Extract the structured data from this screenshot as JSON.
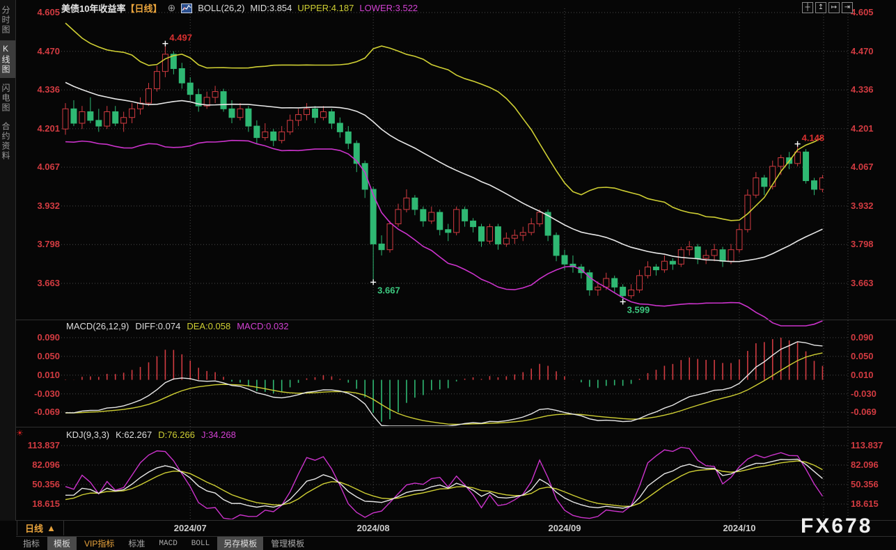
{
  "header": {
    "title": "美债10年收益率",
    "period_tag": "【日线】",
    "add_icon": "⊕",
    "indicator": "BOLL(26,2)",
    "mid_label": "MID:3.854",
    "upper_label": "UPPER:4.187",
    "lower_label": "LOWER:3.522"
  },
  "window_controls": [
    {
      "name": "crosshair-icon",
      "glyph": "┼"
    },
    {
      "name": "y-axis-zoom-icon",
      "glyph": "↥"
    },
    {
      "name": "x-axis-zoom-icon",
      "glyph": "↦"
    },
    {
      "name": "pan-right-icon",
      "glyph": "⇥"
    }
  ],
  "sidebar": {
    "items": [
      {
        "label": "分时图",
        "active": false
      },
      {
        "label": "K线图",
        "active": true
      },
      {
        "label": "闪电图",
        "active": false
      },
      {
        "label": "合约资料",
        "active": false
      }
    ]
  },
  "main_panel": {
    "yticks": [
      "4.605",
      "4.470",
      "4.336",
      "4.201",
      "4.067",
      "3.932",
      "3.798",
      "3.663"
    ]
  },
  "macd_panel": {
    "title": "MACD(26,12,9)",
    "diff_label": "DIFF:0.074",
    "dea_label": "DEA:0.058",
    "macd_label": "MACD:0.032",
    "yticks": [
      "0.090",
      "0.050",
      "0.010",
      "-0.030",
      "-0.069"
    ],
    "settings_icon": "☀"
  },
  "kdj_panel": {
    "title": "KDJ(9,3,3)",
    "k_label": "K:62.267",
    "d_label": "D:76.266",
    "j_label": "J:34.268",
    "yticks": [
      "113.837",
      "82.096",
      "50.356",
      "18.615"
    ]
  },
  "xaxis": {
    "period_label": "日线",
    "period_arrow": "▲",
    "ticks": [
      {
        "label": "2024/07",
        "index": 15
      },
      {
        "label": "2024/08",
        "index": 37
      },
      {
        "label": "2024/09",
        "index": 60
      },
      {
        "label": "2024/10",
        "index": 81
      }
    ]
  },
  "watermark": "FX678",
  "toolbar": {
    "tabs": [
      {
        "label": "指标",
        "style": "plain"
      },
      {
        "label": "模板",
        "style": "active"
      },
      {
        "label": "VIP指标",
        "style": "vip"
      },
      {
        "label": "标准",
        "style": "plain"
      },
      {
        "label": "MACD",
        "style": "mono"
      },
      {
        "label": "BOLL",
        "style": "mono"
      },
      {
        "label": "另存模板",
        "style": "active"
      },
      {
        "label": "管理模板",
        "style": "plain"
      }
    ]
  },
  "colors": {
    "up": "#d23b41",
    "down": "#2fb873",
    "axis_label": "#d23b41",
    "yellow_line": "#cfcf33",
    "magenta_line": "#cc33cc",
    "white_line": "#e8e8e8",
    "grid": "#4a4a4a",
    "accent_orange": "#e8a33c",
    "annotation_high": "#d83030",
    "annotation_low": "#3cc87f",
    "watermark": "#efefef"
  },
  "chart_data": {
    "type": "candlestick",
    "symbol": "美债10年收益率",
    "period": "日线",
    "overlays": [
      "BOLL(26,2)"
    ],
    "sub_charts": [
      "MACD(26,12,9)",
      "KDJ(9,3,3)"
    ],
    "y_range": [
      3.547,
      4.62
    ],
    "x_tick_labels": [
      "2024/07",
      "2024/08",
      "2024/09",
      "2024/10"
    ],
    "displayed_values": {
      "boll": {
        "mid": 3.854,
        "upper": 4.187,
        "lower": 3.522
      },
      "macd": {
        "diff": 0.074,
        "dea": 0.058,
        "macd": 0.032
      },
      "kdj": {
        "k": 62.267,
        "d": 76.266,
        "j": 34.268
      }
    },
    "annotations": [
      {
        "text": "4.497",
        "value": 4.497,
        "candle_index": 12,
        "placement": "above",
        "color": "#d83030"
      },
      {
        "text": "3.667",
        "value": 3.667,
        "candle_index": 37,
        "placement": "below",
        "color": "#3cc87f"
      },
      {
        "text": "3.599",
        "value": 3.599,
        "candle_index": 67,
        "placement": "below",
        "color": "#3cc87f"
      },
      {
        "text": "4.148",
        "value": 4.148,
        "candle_index": 88,
        "placement": "above",
        "color": "#d83030"
      }
    ],
    "candles_ohlc": [
      [
        4.2,
        4.29,
        4.18,
        4.27
      ],
      [
        4.27,
        4.3,
        4.21,
        4.22
      ],
      [
        4.22,
        4.28,
        4.2,
        4.26
      ],
      [
        4.26,
        4.31,
        4.22,
        4.23
      ],
      [
        4.23,
        4.27,
        4.19,
        4.21
      ],
      [
        4.21,
        4.28,
        4.2,
        4.26
      ],
      [
        4.26,
        4.28,
        4.21,
        4.22
      ],
      [
        4.22,
        4.26,
        4.19,
        4.24
      ],
      [
        4.24,
        4.29,
        4.22,
        4.27
      ],
      [
        4.27,
        4.31,
        4.25,
        4.29
      ],
      [
        4.29,
        4.36,
        4.28,
        4.34
      ],
      [
        4.34,
        4.42,
        4.33,
        4.4
      ],
      [
        4.4,
        4.497,
        4.38,
        4.46
      ],
      [
        4.46,
        4.47,
        4.39,
        4.41
      ],
      [
        4.41,
        4.43,
        4.34,
        4.36
      ],
      [
        4.36,
        4.38,
        4.3,
        4.32
      ],
      [
        4.32,
        4.34,
        4.26,
        4.28
      ],
      [
        4.28,
        4.33,
        4.27,
        4.31
      ],
      [
        4.31,
        4.35,
        4.29,
        4.33
      ],
      [
        4.33,
        4.34,
        4.26,
        4.27
      ],
      [
        4.27,
        4.3,
        4.22,
        4.24
      ],
      [
        4.24,
        4.29,
        4.23,
        4.27
      ],
      [
        4.27,
        4.28,
        4.19,
        4.21
      ],
      [
        4.21,
        4.23,
        4.15,
        4.17
      ],
      [
        4.17,
        4.22,
        4.16,
        4.19
      ],
      [
        4.19,
        4.2,
        4.14,
        4.16
      ],
      [
        4.16,
        4.21,
        4.15,
        4.19
      ],
      [
        4.19,
        4.25,
        4.18,
        4.23
      ],
      [
        4.23,
        4.27,
        4.21,
        4.25
      ],
      [
        4.25,
        4.29,
        4.23,
        4.27
      ],
      [
        4.27,
        4.28,
        4.22,
        4.24
      ],
      [
        4.24,
        4.28,
        4.23,
        4.26
      ],
      [
        4.26,
        4.27,
        4.2,
        4.22
      ],
      [
        4.22,
        4.24,
        4.17,
        4.19
      ],
      [
        4.19,
        4.21,
        4.13,
        4.15
      ],
      [
        4.15,
        4.16,
        4.05,
        4.08
      ],
      [
        4.08,
        4.09,
        3.96,
        3.99
      ],
      [
        3.99,
        4.0,
        3.667,
        3.8
      ],
      [
        3.8,
        3.83,
        3.76,
        3.78
      ],
      [
        3.78,
        3.88,
        3.77,
        3.87
      ],
      [
        3.87,
        3.94,
        3.86,
        3.92
      ],
      [
        3.92,
        3.99,
        3.91,
        3.96
      ],
      [
        3.96,
        3.97,
        3.9,
        3.92
      ],
      [
        3.92,
        3.93,
        3.86,
        3.88
      ],
      [
        3.88,
        3.93,
        3.87,
        3.91
      ],
      [
        3.91,
        3.92,
        3.83,
        3.85
      ],
      [
        3.85,
        3.87,
        3.81,
        3.84
      ],
      [
        3.84,
        3.93,
        3.83,
        3.92
      ],
      [
        3.92,
        3.93,
        3.86,
        3.88
      ],
      [
        3.88,
        3.89,
        3.84,
        3.86
      ],
      [
        3.86,
        3.87,
        3.79,
        3.81
      ],
      [
        3.81,
        3.87,
        3.8,
        3.86
      ],
      [
        3.86,
        3.87,
        3.78,
        3.8
      ],
      [
        3.8,
        3.84,
        3.79,
        3.82
      ],
      [
        3.82,
        3.85,
        3.8,
        3.83
      ],
      [
        3.83,
        3.86,
        3.81,
        3.84
      ],
      [
        3.84,
        3.89,
        3.83,
        3.87
      ],
      [
        3.87,
        3.92,
        3.86,
        3.91
      ],
      [
        3.91,
        3.92,
        3.81,
        3.83
      ],
      [
        3.83,
        3.84,
        3.74,
        3.76
      ],
      [
        3.76,
        3.78,
        3.71,
        3.73
      ],
      [
        3.73,
        3.76,
        3.7,
        3.72
      ],
      [
        3.72,
        3.73,
        3.68,
        3.7
      ],
      [
        3.7,
        3.71,
        3.62,
        3.64
      ],
      [
        3.64,
        3.67,
        3.62,
        3.65
      ],
      [
        3.65,
        3.7,
        3.64,
        3.68
      ],
      [
        3.68,
        3.69,
        3.63,
        3.65
      ],
      [
        3.65,
        3.66,
        3.599,
        3.62
      ],
      [
        3.62,
        3.66,
        3.61,
        3.64
      ],
      [
        3.64,
        3.71,
        3.63,
        3.69
      ],
      [
        3.69,
        3.74,
        3.68,
        3.72
      ],
      [
        3.72,
        3.73,
        3.69,
        3.71
      ],
      [
        3.71,
        3.76,
        3.7,
        3.74
      ],
      [
        3.74,
        3.75,
        3.71,
        3.73
      ],
      [
        3.73,
        3.79,
        3.72,
        3.78
      ],
      [
        3.78,
        3.81,
        3.76,
        3.79
      ],
      [
        3.79,
        3.8,
        3.73,
        3.75
      ],
      [
        3.75,
        3.78,
        3.73,
        3.76
      ],
      [
        3.76,
        3.8,
        3.74,
        3.78
      ],
      [
        3.78,
        3.79,
        3.72,
        3.74
      ],
      [
        3.74,
        3.8,
        3.73,
        3.78
      ],
      [
        3.78,
        3.87,
        3.77,
        3.85
      ],
      [
        3.85,
        3.99,
        3.84,
        3.97
      ],
      [
        3.97,
        4.05,
        3.96,
        4.03
      ],
      [
        4.03,
        4.04,
        3.97,
        4.0
      ],
      [
        4.0,
        4.09,
        3.99,
        4.07
      ],
      [
        4.07,
        4.11,
        4.04,
        4.1
      ],
      [
        4.1,
        4.12,
        4.06,
        4.08
      ],
      [
        4.08,
        4.148,
        4.07,
        4.12
      ],
      [
        4.12,
        4.13,
        4.01,
        4.02
      ],
      [
        4.02,
        4.03,
        3.97,
        3.99
      ],
      [
        3.99,
        4.04,
        3.98,
        4.03
      ]
    ]
  }
}
